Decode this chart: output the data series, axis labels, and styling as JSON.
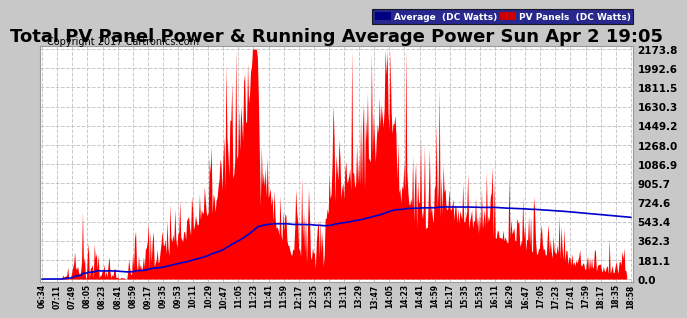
{
  "title": "Total PV Panel Power & Running Average Power Sun Apr 2 19:05",
  "copyright": "Copyright 2017 Cartronics.com",
  "legend_avg": "Average  (DC Watts)",
  "legend_pv": "PV Panels  (DC Watts)",
  "y_max": 2173.8,
  "y_ticks": [
    0.0,
    181.1,
    362.3,
    543.4,
    724.6,
    905.7,
    1086.9,
    1268.0,
    1449.2,
    1630.3,
    1811.5,
    1992.6,
    2173.8
  ],
  "x_labels": [
    "06:34",
    "07:11",
    "07:49",
    "08:05",
    "08:23",
    "08:41",
    "08:59",
    "09:17",
    "09:35",
    "09:53",
    "10:11",
    "10:29",
    "10:47",
    "11:05",
    "11:23",
    "11:41",
    "11:59",
    "12:17",
    "12:35",
    "12:53",
    "13:11",
    "13:29",
    "13:47",
    "14:05",
    "14:23",
    "14:41",
    "14:59",
    "15:17",
    "15:35",
    "15:53",
    "16:11",
    "16:29",
    "16:47",
    "17:05",
    "17:23",
    "17:41",
    "17:59",
    "18:17",
    "18:35",
    "18:58"
  ],
  "outer_bg_color": "#c8c8c8",
  "plot_bg_color": "#ffffff",
  "grid_color": "#c8c8c8",
  "pv_color": "#ff0000",
  "avg_color": "#0000cd",
  "title_fontsize": 13,
  "copyright_fontsize": 7,
  "legend_bg_avg": "#000080",
  "legend_bg_pv": "#cc0000"
}
